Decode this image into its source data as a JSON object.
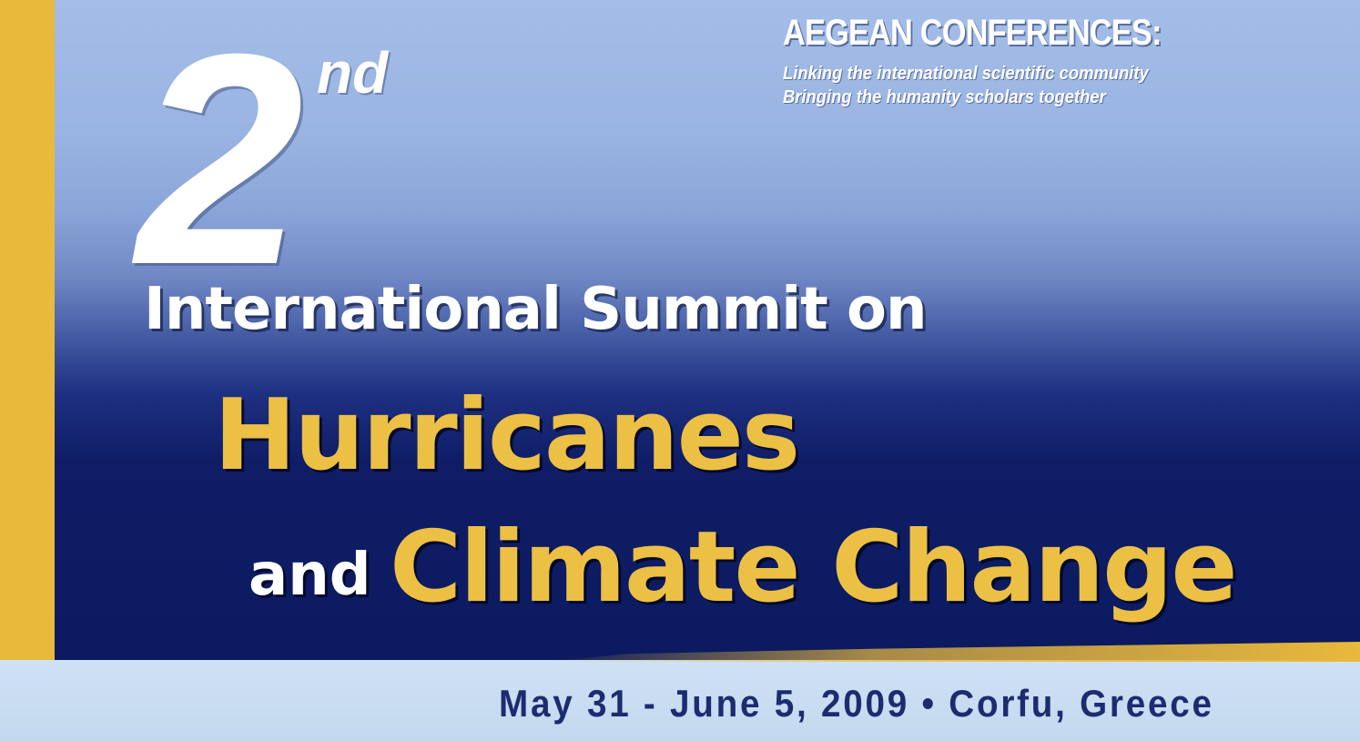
{
  "banner": {
    "ordinal_number": "2",
    "ordinal_suffix": "nd",
    "brand": {
      "title": "AEGEAN CONFERENCES:",
      "tagline_line1": "Linking the international scientific community",
      "tagline_line2": "Bringing the humanity scholars together"
    },
    "summit_line": "International Summit on",
    "topic_line1": "Hurricanes",
    "topic_connector": "and",
    "topic_line2": "Climate Change",
    "event_details": "May 31 - June 5, 2009 • Corfu, Greece"
  },
  "colors": {
    "accent_gold": "#e9b93c",
    "title_gold": "#ecc044",
    "navy": "#0c1a60",
    "sky": "#a4bde8",
    "footer_text": "#1c2c70"
  }
}
